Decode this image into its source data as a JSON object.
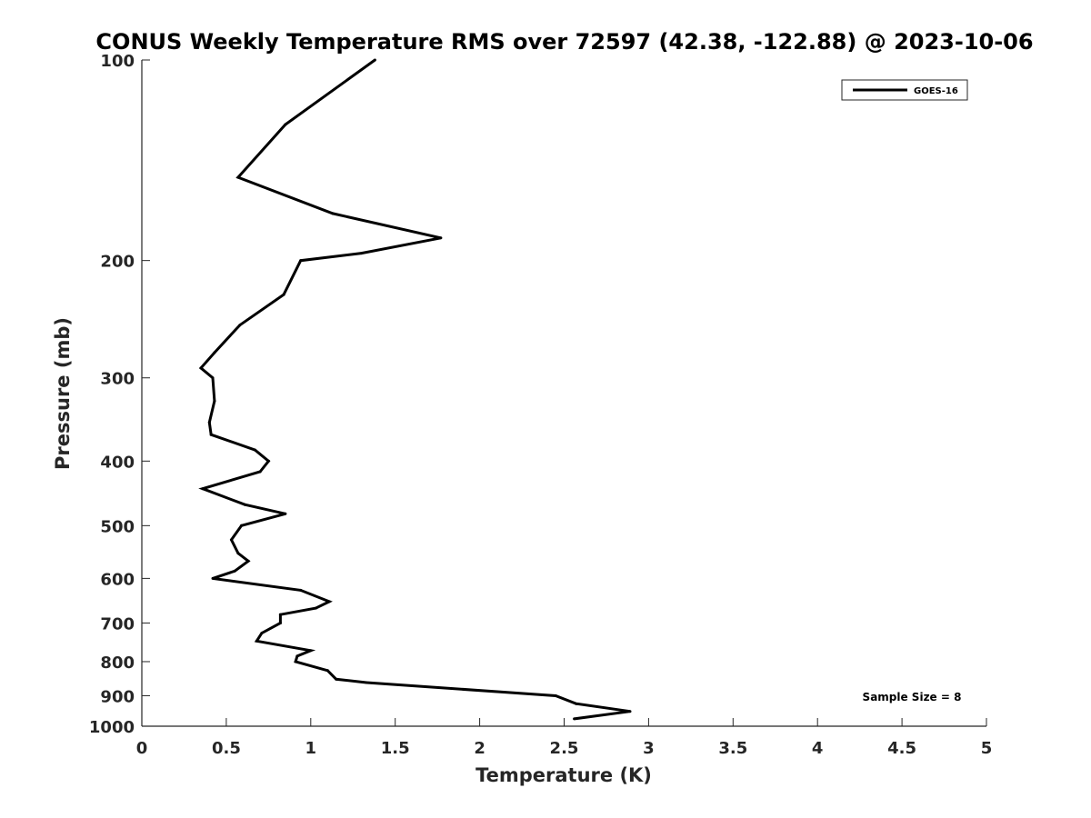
{
  "chart_data": {
    "type": "line",
    "title": "CONUS Weekly Temperature RMS over 72597 (42.38, -122.88) @ 2023-10-06",
    "xlabel": "Temperature (K)",
    "ylabel": "Pressure (mb)",
    "xlim": [
      0,
      5
    ],
    "ylim": [
      1000,
      100
    ],
    "yscale": "log",
    "y_reversed": true,
    "x_ticks": [
      "0",
      "0.5",
      "1",
      "1.5",
      "2",
      "2.5",
      "3",
      "3.5",
      "4",
      "4.5",
      "5"
    ],
    "x_tick_values": [
      0,
      0.5,
      1,
      1.5,
      2,
      2.5,
      3,
      3.5,
      4,
      4.5,
      5
    ],
    "y_ticks": [
      "100",
      "200",
      "300",
      "400",
      "500",
      "600",
      "700",
      "800",
      "900",
      "1000"
    ],
    "y_tick_values": [
      100,
      200,
      300,
      400,
      500,
      600,
      700,
      800,
      900,
      1000
    ],
    "grid": false,
    "legend_position": "top-right",
    "series": [
      {
        "name": "GOES-16",
        "color": "#000000",
        "points": [
          [
            1.38,
            100
          ],
          [
            0.85,
            125
          ],
          [
            0.57,
            150
          ],
          [
            1.13,
            170
          ],
          [
            1.77,
            185
          ],
          [
            1.3,
            195
          ],
          [
            0.94,
            200
          ],
          [
            0.84,
            225
          ],
          [
            0.58,
            250
          ],
          [
            0.43,
            275
          ],
          [
            0.35,
            290
          ],
          [
            0.42,
            300
          ],
          [
            0.43,
            325
          ],
          [
            0.4,
            350
          ],
          [
            0.41,
            365
          ],
          [
            0.67,
            385
          ],
          [
            0.75,
            400
          ],
          [
            0.7,
            415
          ],
          [
            0.36,
            440
          ],
          [
            0.61,
            465
          ],
          [
            0.85,
            480
          ],
          [
            0.59,
            500
          ],
          [
            0.53,
            525
          ],
          [
            0.57,
            550
          ],
          [
            0.63,
            565
          ],
          [
            0.55,
            585
          ],
          [
            0.42,
            600
          ],
          [
            0.94,
            625
          ],
          [
            1.11,
            650
          ],
          [
            1.03,
            665
          ],
          [
            0.82,
            680
          ],
          [
            0.82,
            700
          ],
          [
            0.71,
            725
          ],
          [
            0.68,
            745
          ],
          [
            1.0,
            770
          ],
          [
            0.92,
            785
          ],
          [
            0.91,
            800
          ],
          [
            1.1,
            825
          ],
          [
            1.15,
            850
          ],
          [
            1.33,
            860
          ],
          [
            2.45,
            900
          ],
          [
            2.57,
            925
          ],
          [
            2.89,
            950
          ],
          [
            2.56,
            975
          ]
        ]
      }
    ],
    "annotation": "Sample Size = 8"
  }
}
